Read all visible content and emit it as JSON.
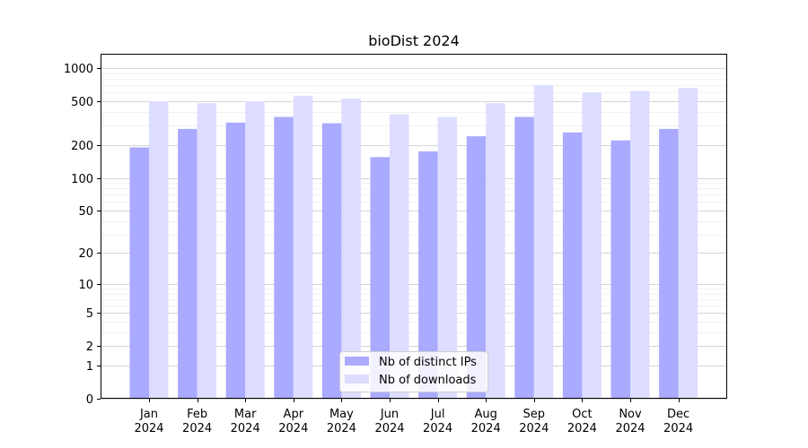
{
  "chart_data": {
    "type": "bar",
    "title": "bioDist 2024",
    "xlabel": "",
    "ylabel": "",
    "yscale": "log(1+y)",
    "ylim": [
      0,
      1350
    ],
    "yticks": [
      0,
      1,
      2,
      5,
      10,
      20,
      50,
      100,
      200,
      500,
      1000
    ],
    "ytick_labels": [
      "0",
      "1",
      "2",
      "5",
      "10",
      "20",
      "50",
      "100",
      "200",
      "500",
      "1000"
    ],
    "grid": true,
    "legend_position": "bottom-center",
    "categories": [
      [
        "Jan",
        "2024"
      ],
      [
        "Feb",
        "2024"
      ],
      [
        "Mar",
        "2024"
      ],
      [
        "Apr",
        "2024"
      ],
      [
        "May",
        "2024"
      ],
      [
        "Jun",
        "2024"
      ],
      [
        "Jul",
        "2024"
      ],
      [
        "Aug",
        "2024"
      ],
      [
        "Sep",
        "2024"
      ],
      [
        "Oct",
        "2024"
      ],
      [
        "Nov",
        "2024"
      ],
      [
        "Dec",
        "2024"
      ]
    ],
    "series": [
      {
        "name": "Nb of distinct IPs",
        "color": "#aaaaff",
        "values": [
          190,
          280,
          320,
          360,
          315,
          155,
          175,
          240,
          360,
          260,
          220,
          280
        ]
      },
      {
        "name": "Nb of downloads",
        "color": "#ddddff",
        "values": [
          500,
          480,
          500,
          560,
          530,
          380,
          360,
          480,
          700,
          600,
          620,
          660
        ]
      }
    ]
  }
}
